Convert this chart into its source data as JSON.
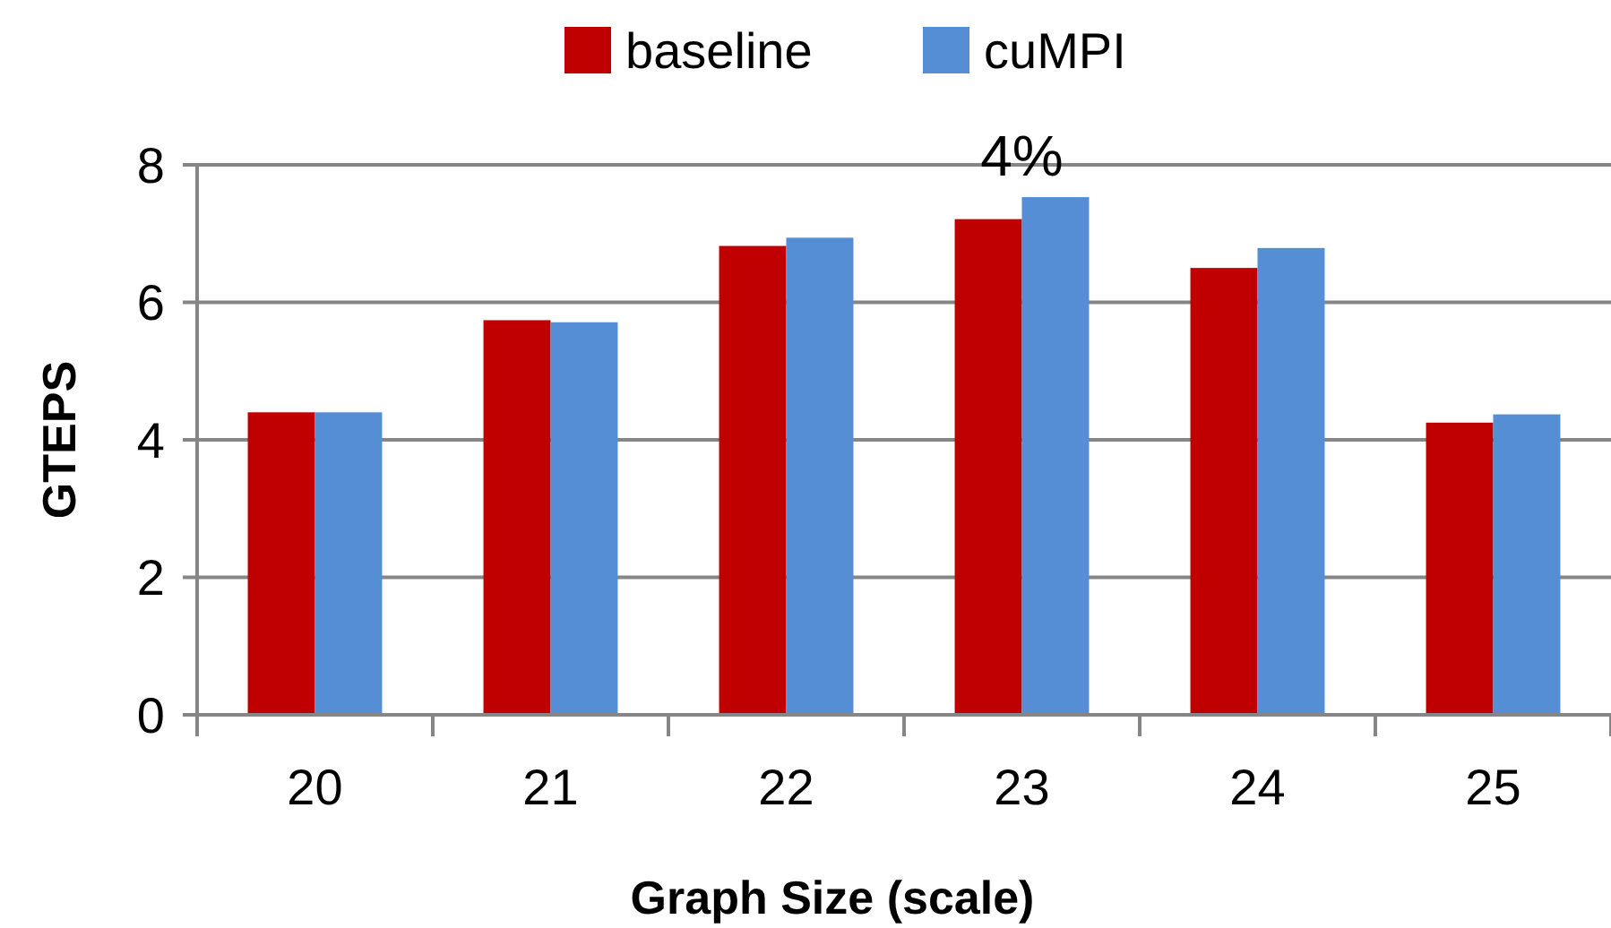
{
  "chart_data": {
    "type": "bar",
    "xlabel": "Graph Size (scale)",
    "ylabel": "GTEPS",
    "categories": [
      "20",
      "21",
      "22",
      "23",
      "24",
      "25"
    ],
    "series": [
      {
        "name": "baseline",
        "color": "#c00000",
        "values": [
          4.4,
          5.74,
          6.82,
          7.21,
          6.5,
          4.25
        ]
      },
      {
        "name": "cuMPI",
        "color": "#558ed5",
        "values": [
          4.4,
          5.71,
          6.94,
          7.53,
          6.79,
          4.37
        ]
      }
    ],
    "ylim": [
      0,
      8
    ],
    "yticks": [
      0,
      2,
      4,
      6,
      8
    ],
    "grid": "y",
    "legend": "top",
    "annotations": [
      {
        "text": "4%",
        "x": "23",
        "y": 7.53
      }
    ]
  }
}
